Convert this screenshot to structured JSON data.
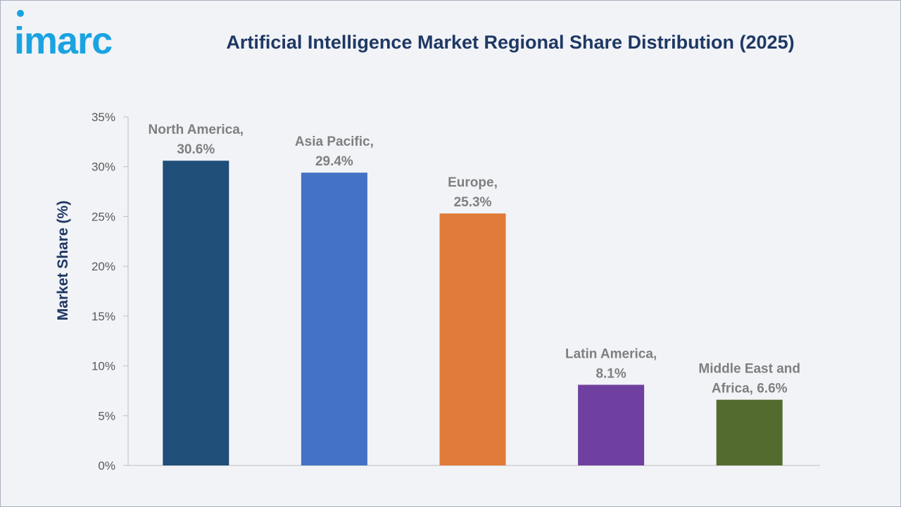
{
  "header": {
    "logo_text": "imarc",
    "title": "Artificial Intelligence Market Regional Share Distribution (2025)"
  },
  "colors": {
    "brand_cyan": "#1aa3e0",
    "title_navy": "#1f3864",
    "axis_gray": "#595959",
    "label_gray": "#7f7f7f"
  },
  "chart_data": {
    "type": "bar",
    "title": "Artificial Intelligence Market Regional Share Distribution (2025)",
    "xlabel": "",
    "ylabel": "Market Share (%)",
    "ylim": [
      0,
      35
    ],
    "yticks": [
      "0%",
      "5%",
      "10%",
      "15%",
      "20%",
      "25%",
      "30%",
      "35%"
    ],
    "ytick_values": [
      0,
      5,
      10,
      15,
      20,
      25,
      30,
      35
    ],
    "grid": false,
    "categories": [
      "North America",
      "Asia Pacific",
      "Europe",
      "Latin America",
      "Middle East and Africa"
    ],
    "values": [
      30.6,
      29.4,
      25.3,
      8.1,
      6.6
    ],
    "bar_colors": [
      "#1f4e79",
      "#4472c4",
      "#e07b39",
      "#7040a0",
      "#546b2f"
    ],
    "data_labels": [
      [
        "North America,",
        "30.6%"
      ],
      [
        "Asia Pacific,",
        "29.4%"
      ],
      [
        "Europe,",
        "25.3%"
      ],
      [
        "Latin America,",
        "8.1%"
      ],
      [
        "Middle East and",
        "Africa, 6.6%"
      ]
    ]
  }
}
